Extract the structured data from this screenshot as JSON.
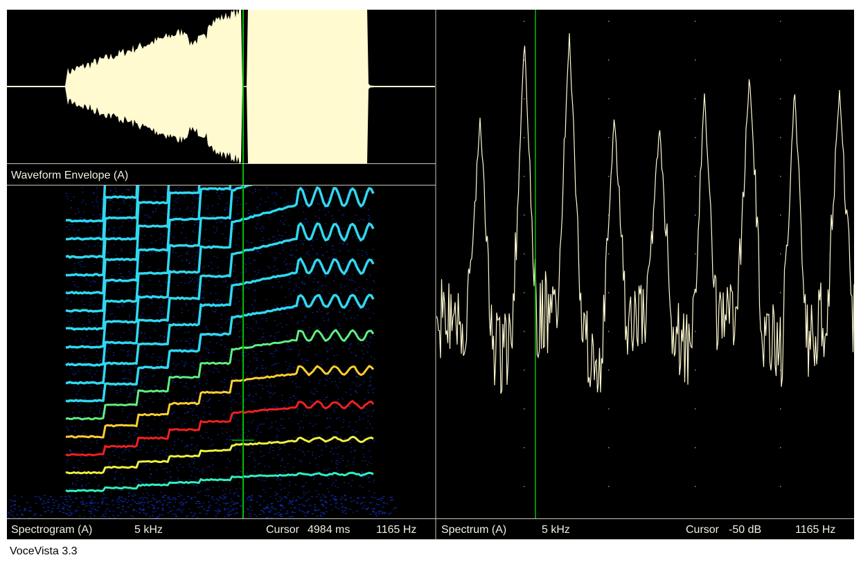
{
  "panels": {
    "waveform": {
      "label": "Waveform Envelope (A)"
    },
    "spectrogram": {
      "label": "Spectrogram (A)",
      "range": "5 kHz",
      "cursor_label": "Cursor",
      "cursor_time": "4984 ms",
      "cursor_freq": "1165 Hz"
    },
    "spectrum": {
      "label": "Spectrum (A)",
      "range": "5 kHz",
      "cursor_label": "Cursor",
      "cursor_level": "-50 dB",
      "cursor_freq": "1165 Hz"
    }
  },
  "status_bar": {
    "title": "VoceVista 3.3"
  }
}
